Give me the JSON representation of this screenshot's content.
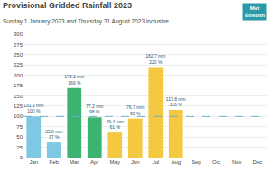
{
  "chart_data": {
    "type": "bar",
    "title": "Provisional Gridded Rainfall 2023",
    "subtitle": "Sunday 1 January 2023 and Thursday 31 August 2023 inclusive",
    "categories": [
      "Jan",
      "Feb",
      "Mar",
      "Apr",
      "May",
      "Jun",
      "Jul",
      "Aug",
      "Sep",
      "Oct",
      "Nov",
      "Dec"
    ],
    "values": [
      100,
      37,
      169,
      98,
      61,
      95,
      220,
      116,
      null,
      null,
      null,
      null
    ],
    "value_labels": [
      "131.2 mm\n100 %",
      "35.8 mm\n37 %",
      "173.3 mm\n169 %",
      "77.2 mm\n98 %",
      "49.4 mm\n61 %",
      "76.7 mm\n95 %",
      "182.7 mm\n220 %",
      "117.8 mm\n116 %",
      null,
      null,
      null,
      null
    ],
    "colors": [
      "#7ec8e3",
      "#7ec8e3",
      "#3cb371",
      "#3cb371",
      "#f5c842",
      "#f5c842",
      "#f5c842",
      "#f5c842",
      null,
      null,
      null,
      null
    ],
    "data_labels": true,
    "ylim": [
      0,
      300
    ],
    "yticks": [
      0,
      25,
      50,
      75,
      100,
      125,
      150,
      175,
      200,
      225,
      250,
      275,
      300
    ],
    "grid": true,
    "reference_line": {
      "value": 100,
      "color": "#6ab0c8",
      "line_style": "dashed"
    },
    "annotations": [
      "Met\nÉireann"
    ]
  }
}
